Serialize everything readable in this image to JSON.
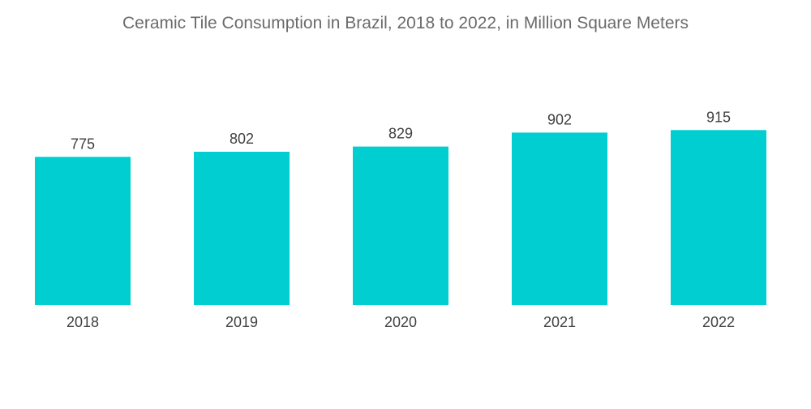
{
  "chart_data": {
    "type": "bar",
    "title": "Ceramic Tile Consumption in Brazil, 2018 to 2022, in Million Square Meters",
    "categories": [
      "2018",
      "2019",
      "2020",
      "2021",
      "2022"
    ],
    "values": [
      775,
      802,
      829,
      902,
      915
    ],
    "xlabel": "",
    "ylabel": "",
    "grid": false,
    "legend": "none",
    "bar_color": "#00ced1"
  }
}
